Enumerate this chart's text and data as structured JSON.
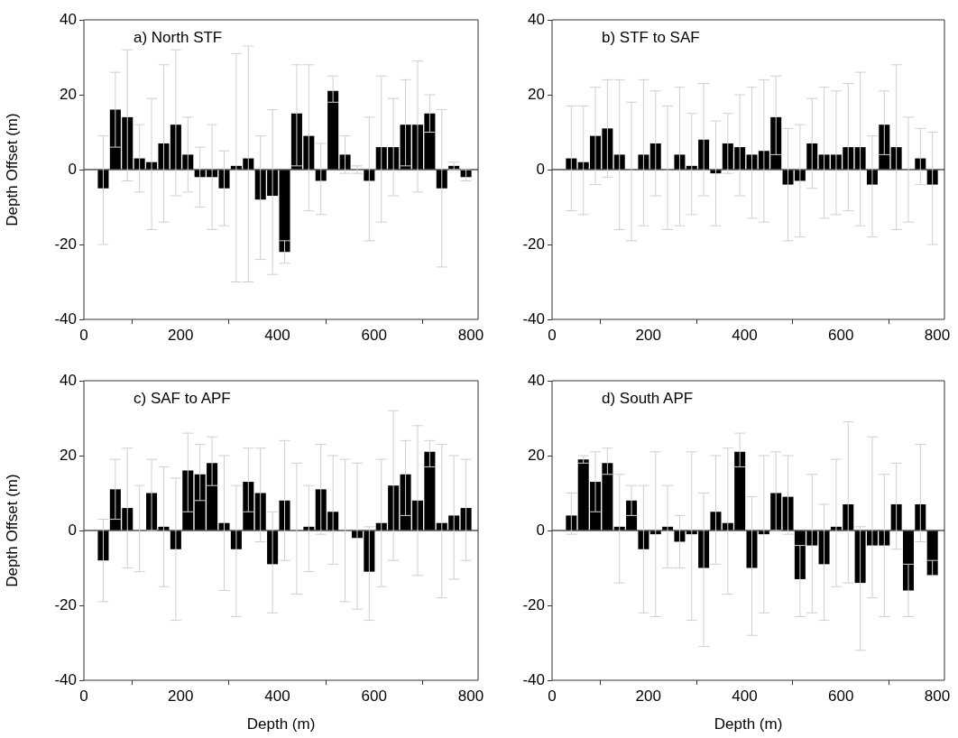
{
  "chart_data": [
    {
      "type": "bar",
      "title": "a) North STF",
      "ylabel": "Depth Offset (m)",
      "color": "#000000",
      "x": [
        40,
        65,
        90,
        115,
        140,
        165,
        190,
        215,
        240,
        265,
        290,
        315,
        340,
        365,
        390,
        415,
        440,
        465,
        490,
        515,
        540,
        565,
        590,
        615,
        640,
        665,
        690,
        715,
        740,
        765,
        790
      ],
      "values": [
        -5,
        16,
        14,
        3,
        2,
        7,
        12,
        4,
        -2,
        -2,
        -5,
        1,
        3,
        -8,
        -7,
        -22,
        15,
        9,
        -3,
        21,
        4,
        0,
        -3,
        6,
        6,
        12,
        12,
        15,
        -5,
        1,
        -2
      ],
      "errors": [
        [
          -20,
          9
        ],
        [
          6,
          26
        ],
        [
          -3,
          32
        ],
        [
          -6,
          12
        ],
        [
          -16,
          19
        ],
        [
          -14,
          28
        ],
        [
          -7,
          32
        ],
        [
          -6,
          14
        ],
        [
          -10,
          6
        ],
        [
          -16,
          12
        ],
        [
          -15,
          5
        ],
        [
          -30,
          31
        ],
        [
          -30,
          33
        ],
        [
          -24,
          9
        ],
        [
          -28,
          16
        ],
        [
          -25,
          -19
        ],
        [
          1,
          28
        ],
        [
          -11,
          28
        ],
        [
          -12,
          7
        ],
        [
          18,
          25
        ],
        [
          -1,
          9
        ],
        [
          -1,
          1
        ],
        [
          -19,
          14
        ],
        [
          -14,
          25
        ],
        [
          -7,
          19
        ],
        [
          1,
          24
        ],
        [
          -6,
          29
        ],
        [
          10,
          20
        ],
        [
          -26,
          16
        ],
        [
          0,
          2
        ],
        [
          -3,
          0
        ]
      ],
      "xlim": [
        0,
        815
      ],
      "xticks": [
        0,
        200,
        400,
        600,
        800
      ],
      "ylim": [
        -40,
        40
      ],
      "yticks": [
        -40,
        -20,
        0,
        20,
        40
      ]
    },
    {
      "type": "bar",
      "title": "b) STF to SAF",
      "color": "#000000",
      "x": [
        40,
        65,
        90,
        115,
        140,
        165,
        190,
        215,
        240,
        265,
        290,
        315,
        340,
        365,
        390,
        415,
        440,
        465,
        490,
        515,
        540,
        565,
        590,
        615,
        640,
        665,
        690,
        715,
        740,
        765,
        790
      ],
      "values": [
        3,
        2,
        9,
        11,
        4,
        0,
        4,
        7,
        0,
        4,
        1,
        8,
        -1,
        7,
        6,
        4,
        5,
        14,
        -4,
        -3,
        7,
        4,
        4,
        6,
        6,
        -4,
        12,
        6,
        0,
        3,
        -4
      ],
      "errors": [
        [
          -11,
          17
        ],
        [
          -12,
          17
        ],
        [
          -4,
          22
        ],
        [
          -2,
          24
        ],
        [
          -16,
          24
        ],
        [
          -19,
          18
        ],
        [
          -15,
          24
        ],
        [
          -7,
          21
        ],
        [
          -16,
          17
        ],
        [
          -15,
          22
        ],
        [
          -12,
          15
        ],
        [
          -7,
          23
        ],
        [
          -15,
          13
        ],
        [
          -1,
          15
        ],
        [
          -7,
          20
        ],
        [
          -13,
          22
        ],
        [
          -14,
          24
        ],
        [
          4,
          25
        ],
        [
          -19,
          11
        ],
        [
          -18,
          12
        ],
        [
          -5,
          19
        ],
        [
          -13,
          22
        ],
        [
          -12,
          21
        ],
        [
          -11,
          23
        ],
        [
          -15,
          26
        ],
        [
          -18,
          9
        ],
        [
          4,
          21
        ],
        [
          -16,
          28
        ],
        [
          -14,
          14
        ],
        [
          -4,
          11
        ],
        [
          -20,
          10
        ]
      ],
      "xlim": [
        0,
        815
      ],
      "xticks": [
        0,
        200,
        400,
        600,
        800
      ],
      "ylim": [
        -40,
        40
      ],
      "yticks": [
        -40,
        -20,
        0,
        20,
        40
      ]
    },
    {
      "type": "bar",
      "title": "c) SAF to APF",
      "xlabel": "Depth (m)",
      "ylabel": "Depth Offset (m)",
      "color": "#000000",
      "x": [
        40,
        65,
        90,
        115,
        140,
        165,
        190,
        215,
        240,
        265,
        290,
        315,
        340,
        365,
        390,
        415,
        440,
        465,
        490,
        515,
        540,
        565,
        590,
        615,
        640,
        665,
        690,
        715,
        740,
        765,
        790
      ],
      "values": [
        -8,
        11,
        6,
        0,
        10,
        1,
        -5,
        16,
        15,
        18,
        2,
        -5,
        13,
        10,
        -9,
        8,
        0,
        1,
        11,
        5,
        0,
        -2,
        -11,
        2,
        12,
        15,
        8,
        21,
        2,
        4,
        6
      ],
      "errors": [
        [
          -19,
          3
        ],
        [
          3,
          19
        ],
        [
          -10,
          22
        ],
        [
          -11,
          12
        ],
        [
          0,
          19
        ],
        [
          -15,
          17
        ],
        [
          -24,
          14
        ],
        [
          5,
          26
        ],
        [
          8,
          23
        ],
        [
          12,
          25
        ],
        [
          -16,
          20
        ],
        [
          -23,
          12
        ],
        [
          5,
          22
        ],
        [
          -3,
          22
        ],
        [
          -22,
          5
        ],
        [
          -8,
          24
        ],
        [
          -17,
          18
        ],
        [
          -11,
          12
        ],
        [
          -1,
          23
        ],
        [
          -9,
          20
        ],
        [
          -19,
          19
        ],
        [
          -21,
          18
        ],
        [
          -24,
          1
        ],
        [
          -15,
          19
        ],
        [
          -8,
          32
        ],
        [
          4,
          24
        ],
        [
          -12,
          28
        ],
        [
          17,
          24
        ],
        [
          -18,
          23
        ],
        [
          -13,
          20
        ],
        [
          -8,
          19
        ]
      ],
      "xlim": [
        0,
        815
      ],
      "xticks": [
        0,
        200,
        400,
        600,
        800
      ],
      "ylim": [
        -40,
        40
      ],
      "yticks": [
        -40,
        -20,
        0,
        20,
        40
      ]
    },
    {
      "type": "bar",
      "title": "d) South APF",
      "xlabel": "Depth (m)",
      "color": "#000000",
      "x": [
        40,
        65,
        90,
        115,
        140,
        165,
        190,
        215,
        240,
        265,
        290,
        315,
        340,
        365,
        390,
        415,
        440,
        465,
        490,
        515,
        540,
        565,
        590,
        615,
        640,
        665,
        690,
        715,
        740,
        765,
        790
      ],
      "values": [
        4,
        19,
        13,
        18,
        1,
        8,
        -5,
        -1,
        1,
        -3,
        -1,
        -10,
        5,
        2,
        21,
        -10,
        -1,
        10,
        9,
        -13,
        -4,
        -9,
        1,
        7,
        -14,
        -4,
        -4,
        7,
        -16,
        7,
        -12
      ],
      "errors": [
        [
          -1,
          10
        ],
        [
          18,
          20
        ],
        [
          5,
          21
        ],
        [
          15,
          22
        ],
        [
          -14,
          15
        ],
        [
          4,
          12
        ],
        [
          -22,
          12
        ],
        [
          -23,
          21
        ],
        [
          -10,
          12
        ],
        [
          -10,
          4
        ],
        [
          -24,
          21
        ],
        [
          -31,
          10
        ],
        [
          -9,
          20
        ],
        [
          -17,
          22
        ],
        [
          17,
          26
        ],
        [
          -28,
          9
        ],
        [
          -22,
          20
        ],
        [
          0,
          21
        ],
        [
          -1,
          20
        ],
        [
          -23,
          -4
        ],
        [
          -22,
          15
        ],
        [
          -24,
          7
        ],
        [
          -15,
          19
        ],
        [
          -14,
          29
        ],
        [
          -32,
          1
        ],
        [
          -18,
          25
        ],
        [
          -23,
          15
        ],
        [
          -5,
          18
        ],
        [
          -23,
          -9
        ],
        [
          -3,
          23
        ],
        [
          -12,
          -8
        ]
      ],
      "xlim": [
        0,
        815
      ],
      "xticks": [
        0,
        200,
        400,
        600,
        800
      ],
      "ylim": [
        -40,
        40
      ],
      "yticks": [
        -40,
        -20,
        0,
        20,
        40
      ]
    }
  ]
}
